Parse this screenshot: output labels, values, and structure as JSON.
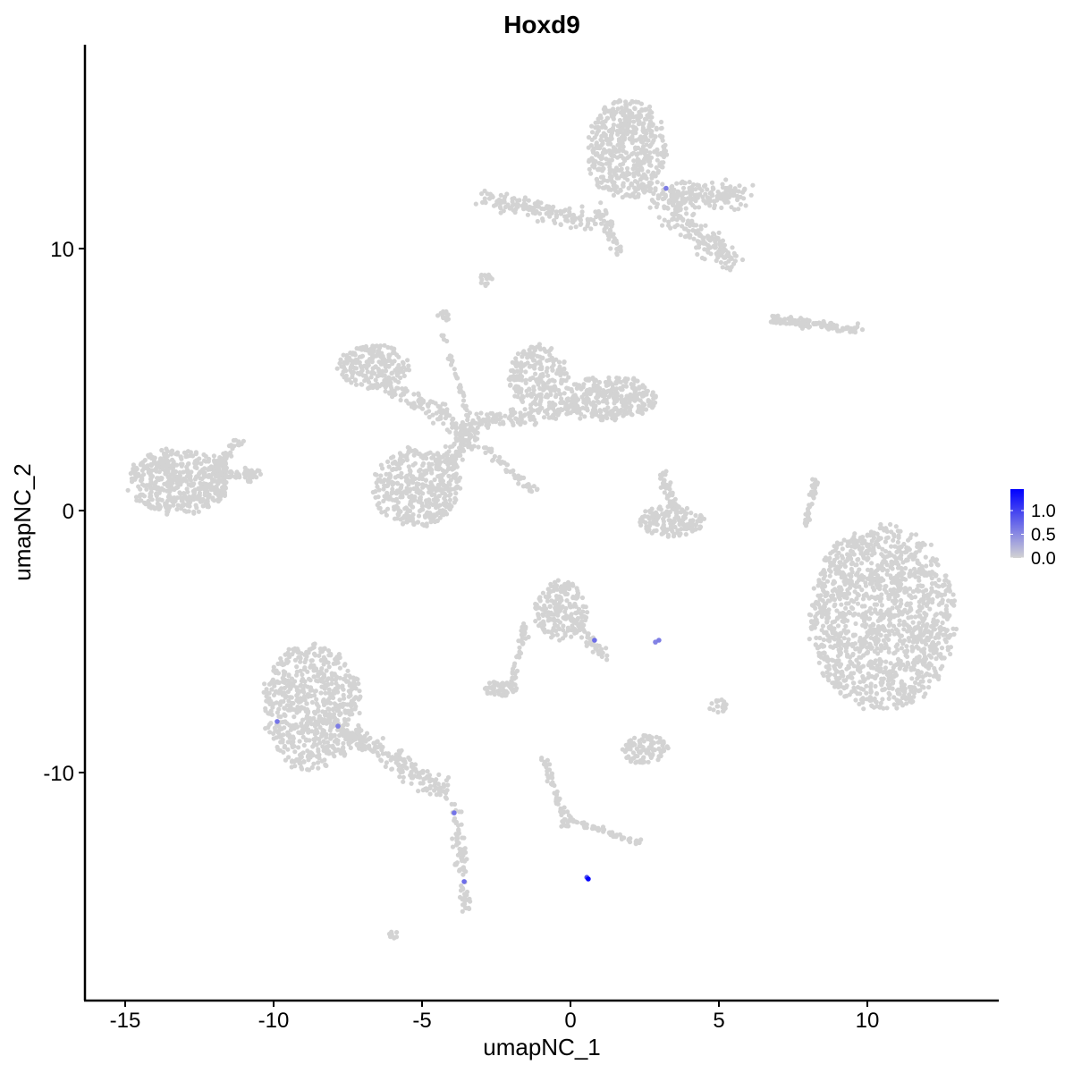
{
  "chart_data": {
    "type": "scatter",
    "title": "Hoxd9",
    "xlabel": "umapNC_1",
    "ylabel": "umapNC_2",
    "xlim": [
      -16.4,
      14.3
    ],
    "ylim": [
      -18.4,
      17.9
    ],
    "xticks": [
      -15,
      -10,
      -5,
      0,
      5,
      10
    ],
    "yticks": [
      -10,
      0,
      10
    ],
    "grid": false,
    "colors": {
      "low": "#d3d3d3",
      "high": "#0000ff"
    },
    "legend": {
      "position": "right",
      "ticks": [
        "0.0",
        "0.5",
        "1.0"
      ],
      "range": [
        0,
        1.45
      ]
    },
    "clusters": [
      {
        "shape": "ellipse",
        "cx": -13.2,
        "cy": 1.1,
        "rx": 1.7,
        "ry": 1.25,
        "n": 500
      },
      {
        "shape": "segment",
        "x1": -12,
        "y1": 1.3,
        "x2": -10.5,
        "y2": 1.4,
        "w": 0.35,
        "n": 60
      },
      {
        "shape": "segment",
        "x1": -12,
        "y1": 1.5,
        "x2": -11.2,
        "y2": 2.7,
        "w": 0.3,
        "n": 40
      },
      {
        "shape": "ellipse",
        "cx": 10.5,
        "cy": -4.1,
        "rx": 2.45,
        "ry": 3.5,
        "n": 1400
      },
      {
        "shape": "ellipse",
        "cx": 1.9,
        "cy": 13.8,
        "rx": 1.35,
        "ry": 1.9,
        "n": 500
      },
      {
        "shape": "segment",
        "x1": -3,
        "y1": 12.0,
        "x2": 0.8,
        "y2": 11.0,
        "w": 0.55,
        "n": 150
      },
      {
        "shape": "segment",
        "x1": 2.8,
        "y1": 12.0,
        "x2": 5.8,
        "y2": 12.0,
        "w": 0.7,
        "n": 200
      },
      {
        "shape": "segment",
        "x1": 3.3,
        "y1": 11.5,
        "x2": 5.5,
        "y2": 9.5,
        "w": 0.7,
        "n": 160
      },
      {
        "shape": "segment",
        "x1": 1.0,
        "y1": 11.5,
        "x2": 1.6,
        "y2": 9.8,
        "w": 0.35,
        "n": 50
      },
      {
        "shape": "ellipse",
        "cx": -5.2,
        "cy": 0.9,
        "rx": 1.5,
        "ry": 1.5,
        "n": 400
      },
      {
        "shape": "ellipse",
        "cx": -6.6,
        "cy": 5.5,
        "rx": 1.2,
        "ry": 0.85,
        "n": 220
      },
      {
        "shape": "ellipse",
        "cx": -1.1,
        "cy": 5.1,
        "rx": 1.0,
        "ry": 1.2,
        "n": 220
      },
      {
        "shape": "ellipse",
        "cx": 1.3,
        "cy": 4.3,
        "rx": 1.6,
        "ry": 0.85,
        "n": 300
      },
      {
        "shape": "segment",
        "x1": -6.2,
        "y1": 4.8,
        "x2": -3.3,
        "y2": 3.0,
        "w": 0.5,
        "n": 120
      },
      {
        "shape": "segment",
        "x1": -4.2,
        "y1": 1.5,
        "x2": -3.3,
        "y2": 3.3,
        "w": 0.6,
        "n": 120
      },
      {
        "shape": "segment",
        "x1": -3.3,
        "y1": 3.3,
        "x2": 0.5,
        "y2": 4.0,
        "w": 0.5,
        "n": 150
      },
      {
        "shape": "segment",
        "x1": -3.0,
        "y1": 2.5,
        "x2": -1.2,
        "y2": 0.7,
        "w": 0.25,
        "n": 50
      },
      {
        "shape": "segment",
        "x1": -4.3,
        "y1": 6.8,
        "x2": -3.4,
        "y2": 3.5,
        "w": 0.15,
        "n": 40
      },
      {
        "shape": "ellipse",
        "cx": -8.7,
        "cy": -7.5,
        "rx": 1.65,
        "ry": 2.4,
        "n": 650
      },
      {
        "shape": "segment",
        "x1": -7.5,
        "y1": -8.5,
        "x2": -4.2,
        "y2": -10.7,
        "w": 0.6,
        "n": 200
      },
      {
        "shape": "segment",
        "x1": -3.9,
        "y1": -11.2,
        "x2": -3.5,
        "y2": -15.2,
        "w": 0.3,
        "n": 80
      },
      {
        "shape": "ellipse",
        "cx": -0.3,
        "cy": -3.8,
        "rx": 0.9,
        "ry": 1.15,
        "n": 200
      },
      {
        "shape": "segment",
        "x1": 0.3,
        "y1": -4.5,
        "x2": 1.2,
        "y2": -5.6,
        "w": 0.25,
        "n": 40
      },
      {
        "shape": "segment",
        "x1": -1.5,
        "y1": -4.3,
        "x2": -2.0,
        "y2": -6.6,
        "w": 0.2,
        "n": 40
      },
      {
        "shape": "ellipse",
        "cx": -2.35,
        "cy": -6.8,
        "rx": 0.6,
        "ry": 0.3,
        "n": 60
      },
      {
        "shape": "ellipse",
        "cx": 3.4,
        "cy": -0.4,
        "rx": 1.1,
        "ry": 0.6,
        "n": 150
      },
      {
        "shape": "segment",
        "x1": 3.1,
        "y1": 1.5,
        "x2": 3.5,
        "y2": 0.0,
        "w": 0.3,
        "n": 40
      },
      {
        "shape": "ellipse",
        "cx": 2.5,
        "cy": -9.1,
        "rx": 0.8,
        "ry": 0.55,
        "n": 100
      },
      {
        "shape": "segment",
        "x1": 6.8,
        "y1": 7.3,
        "x2": 9.8,
        "y2": 6.9,
        "w": 0.25,
        "n": 110
      },
      {
        "shape": "segment",
        "x1": 8.3,
        "y1": 1.2,
        "x2": 7.9,
        "y2": -0.6,
        "w": 0.15,
        "n": 40
      },
      {
        "shape": "segment",
        "x1": -0.9,
        "y1": -9.5,
        "x2": -0.1,
        "y2": -12.1,
        "w": 0.2,
        "n": 60
      },
      {
        "shape": "segment",
        "x1": 0.0,
        "y1": -11.8,
        "x2": 2.3,
        "y2": -12.7,
        "w": 0.2,
        "n": 60
      },
      {
        "shape": "ellipse",
        "cx": 5.0,
        "cy": -7.5,
        "rx": 0.35,
        "ry": 0.3,
        "n": 20
      },
      {
        "shape": "ellipse",
        "cx": -6.0,
        "cy": -16.2,
        "rx": 0.25,
        "ry": 0.15,
        "n": 10
      },
      {
        "shape": "ellipse",
        "cx": -2.8,
        "cy": 8.8,
        "rx": 0.25,
        "ry": 0.3,
        "n": 15
      },
      {
        "shape": "ellipse",
        "cx": -4.3,
        "cy": 7.4,
        "rx": 0.2,
        "ry": 0.25,
        "n": 12
      }
    ],
    "expressing_cells": [
      {
        "x": 3.22,
        "y": 12.3,
        "v": 0.6
      },
      {
        "x": 0.81,
        "y": -4.95,
        "v": 0.7
      },
      {
        "x": 2.86,
        "y": -5.02,
        "v": 0.55
      },
      {
        "x": 2.98,
        "y": -4.95,
        "v": 0.6
      },
      {
        "x": -9.88,
        "y": -8.05,
        "v": 0.65
      },
      {
        "x": -7.83,
        "y": -8.23,
        "v": 0.6
      },
      {
        "x": -3.92,
        "y": -11.54,
        "v": 0.65
      },
      {
        "x": -3.58,
        "y": -14.16,
        "v": 0.7
      },
      {
        "x": 0.55,
        "y": -14.0,
        "v": 0.9
      },
      {
        "x": 0.6,
        "y": -14.06,
        "v": 1.45
      }
    ]
  }
}
